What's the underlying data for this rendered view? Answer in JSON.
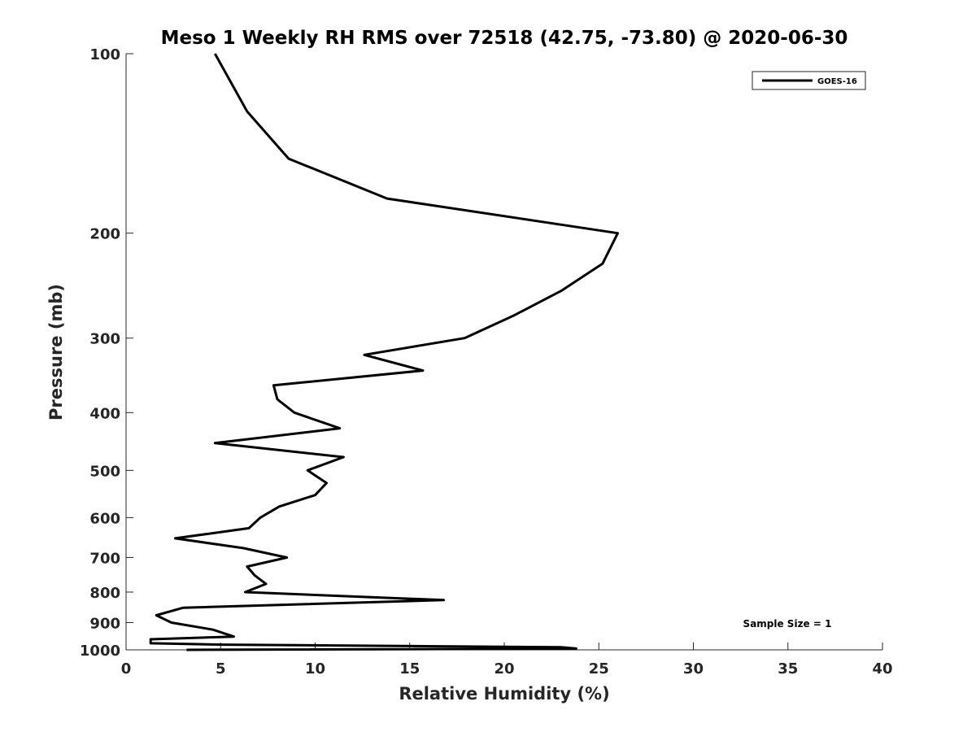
{
  "chart_data": {
    "type": "line",
    "title": "Meso 1 Weekly RH RMS over 72518 (42.75, -73.80) @ 2020-06-30",
    "xlabel": "Relative Humidity (%)",
    "ylabel": "Pressure (mb)",
    "xlim": [
      0,
      40
    ],
    "ylim": [
      100,
      1000
    ],
    "y_scale": "log",
    "y_reversed": true,
    "grid": false,
    "legend_position": "top-right",
    "xticks": [
      0,
      5,
      10,
      15,
      20,
      25,
      30,
      35,
      40
    ],
    "yticks": [
      100,
      200,
      300,
      400,
      500,
      600,
      700,
      800,
      900,
      1000
    ],
    "annotation": "Sample Size = 1",
    "series": [
      {
        "name": "GOES-16",
        "color": "#000000",
        "points": [
          [
            4.7,
            100
          ],
          [
            6.4,
            125
          ],
          [
            8.6,
            150
          ],
          [
            13.8,
            175
          ],
          [
            26.0,
            200
          ],
          [
            25.2,
            225
          ],
          [
            23.0,
            250
          ],
          [
            20.5,
            275
          ],
          [
            17.9,
            300
          ],
          [
            12.6,
            320
          ],
          [
            15.7,
            340
          ],
          [
            7.8,
            360
          ],
          [
            8.0,
            380
          ],
          [
            8.9,
            400
          ],
          [
            11.3,
            425
          ],
          [
            4.7,
            450
          ],
          [
            11.5,
            475
          ],
          [
            9.6,
            500
          ],
          [
            10.6,
            525
          ],
          [
            10.0,
            550
          ],
          [
            8.1,
            575
          ],
          [
            7.1,
            600
          ],
          [
            6.5,
            625
          ],
          [
            2.6,
            650
          ],
          [
            6.2,
            675
          ],
          [
            8.5,
            700
          ],
          [
            6.4,
            725
          ],
          [
            6.8,
            750
          ],
          [
            7.4,
            775
          ],
          [
            6.3,
            800
          ],
          [
            16.8,
            825
          ],
          [
            3.0,
            850
          ],
          [
            1.6,
            875
          ],
          [
            2.4,
            900
          ],
          [
            4.6,
            925
          ],
          [
            5.7,
            950
          ],
          [
            1.3,
            960
          ],
          [
            1.3,
            975
          ],
          [
            5.1,
            980
          ],
          [
            23.0,
            990
          ],
          [
            23.8,
            995
          ],
          [
            3.2,
            1000
          ]
        ]
      }
    ]
  }
}
